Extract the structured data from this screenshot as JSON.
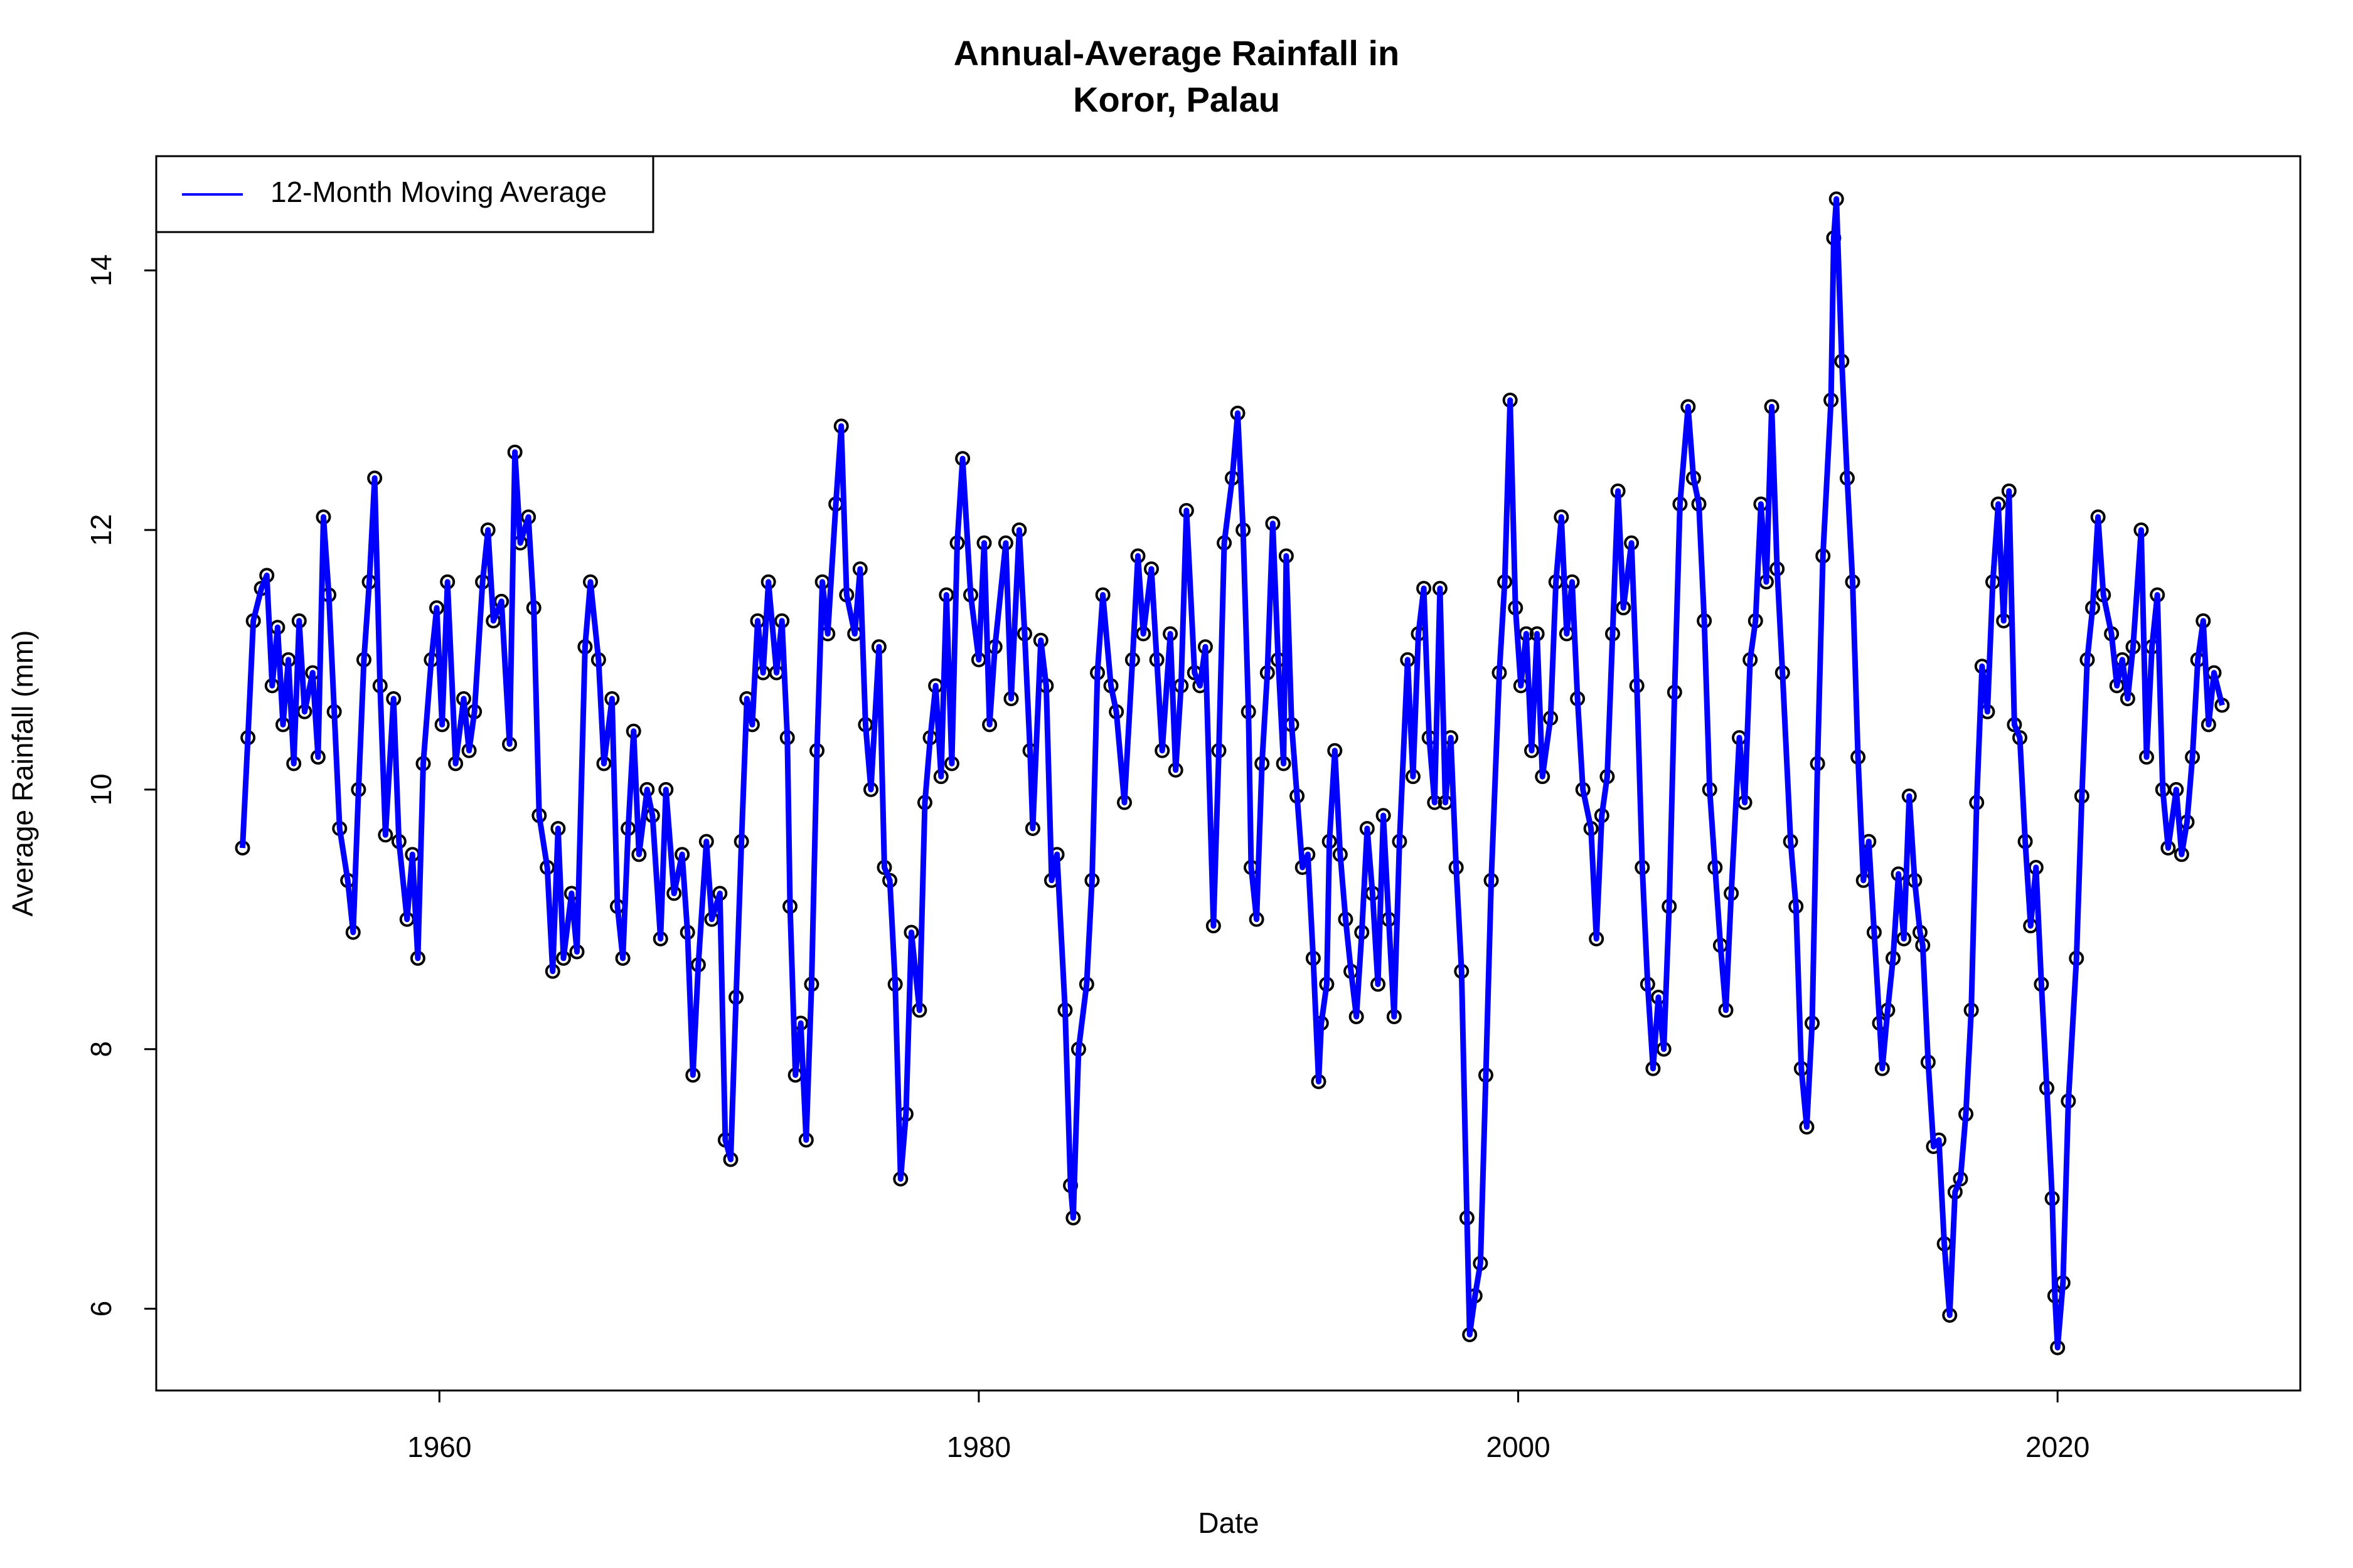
{
  "chart_data": {
    "type": "line",
    "title": "Annual-Average Rainfall in\nKoror, Palau",
    "x_label": "Date",
    "y_label": "Average Rainfall (mm)",
    "xlim": [
      1949.5,
      2029.0
    ],
    "ylim": [
      5.37,
      14.88
    ],
    "xticks": [
      1960,
      1980,
      2000,
      2020
    ],
    "yticks": [
      6,
      8,
      10,
      12,
      14
    ],
    "legend": "topleft",
    "markers": true,
    "series": [
      {
        "name": "12-Month Moving Average",
        "color": "#0000ff",
        "x": [
          1952.7,
          1952.9,
          1953.1,
          1953.4,
          1953.6,
          1953.8,
          1954.0,
          1954.2,
          1954.4,
          1954.6,
          1954.8,
          1955.0,
          1955.3,
          1955.5,
          1955.7,
          1955.9,
          1956.1,
          1956.3,
          1956.6,
          1956.8,
          1957.0,
          1957.2,
          1957.4,
          1957.6,
          1957.8,
          1958.0,
          1958.3,
          1958.5,
          1958.8,
          1959.0,
          1959.2,
          1959.4,
          1959.7,
          1959.9,
          1960.1,
          1960.3,
          1960.6,
          1960.9,
          1961.1,
          1961.3,
          1961.6,
          1961.8,
          1962.0,
          1962.3,
          1962.6,
          1962.8,
          1963.0,
          1963.3,
          1963.5,
          1963.7,
          1964.0,
          1964.2,
          1964.4,
          1964.6,
          1964.9,
          1965.1,
          1965.4,
          1965.6,
          1965.9,
          1966.1,
          1966.4,
          1966.6,
          1966.8,
          1967.0,
          1967.2,
          1967.4,
          1967.7,
          1967.9,
          1968.2,
          1968.4,
          1968.7,
          1969.0,
          1969.2,
          1969.4,
          1969.6,
          1969.9,
          1970.1,
          1970.4,
          1970.6,
          1970.8,
          1971.0,
          1971.2,
          1971.4,
          1971.6,
          1971.8,
          1972.0,
          1972.2,
          1972.5,
          1972.7,
          1972.9,
          1973.0,
          1973.2,
          1973.4,
          1973.6,
          1973.8,
          1974.0,
          1974.2,
          1974.4,
          1974.7,
          1974.9,
          1975.1,
          1975.4,
          1975.6,
          1975.8,
          1976.0,
          1976.3,
          1976.5,
          1976.7,
          1976.9,
          1977.1,
          1977.3,
          1977.5,
          1977.8,
          1978.0,
          1978.2,
          1978.4,
          1978.6,
          1978.8,
          1979.0,
          1979.2,
          1979.4,
          1979.7,
          1980.0,
          1980.2,
          1980.4,
          1980.6,
          1981.0,
          1981.2,
          1981.5,
          1981.7,
          1981.9,
          1982.0,
          1982.3,
          1982.5,
          1982.7,
          1982.9,
          1983.2,
          1983.4,
          1983.5,
          1983.7,
          1984.0,
          1984.2,
          1984.4,
          1984.6,
          1984.9,
          1985.1,
          1985.4,
          1985.7,
          1985.9,
          1986.1,
          1986.4,
          1986.6,
          1986.8,
          1987.1,
          1987.3,
          1987.5,
          1987.7,
          1988.0,
          1988.2,
          1988.4,
          1988.7,
          1988.9,
          1989.1,
          1989.4,
          1989.6,
          1989.8,
          1990.0,
          1990.1,
          1990.3,
          1990.5,
          1990.7,
          1990.9,
          1991.1,
          1991.3,
          1991.4,
          1991.6,
          1991.8,
          1992.0,
          1992.2,
          1992.4,
          1992.6,
          1992.7,
          1992.9,
          1993.0,
          1993.2,
          1993.4,
          1993.6,
          1993.8,
          1994.0,
          1994.2,
          1994.4,
          1994.6,
          1994.8,
          1995.0,
          1995.2,
          1995.4,
          1995.6,
          1995.9,
          1996.1,
          1996.3,
          1996.5,
          1996.7,
          1996.9,
          1997.1,
          1997.3,
          1997.5,
          1997.7,
          1997.9,
          1998.1,
          1998.2,
          1998.4,
          1998.6,
          1998.8,
          1999.0,
          1999.3,
          1999.5,
          1999.7,
          1999.9,
          2000.1,
          2000.3,
          2000.5,
          2000.7,
          2000.9,
          2001.2,
          2001.4,
          2001.6,
          2001.8,
          2002.0,
          2002.2,
          2002.4,
          2002.7,
          2002.9,
          2003.1,
          2003.3,
          2003.5,
          2003.7,
          2003.9,
          2004.2,
          2004.4,
          2004.6,
          2004.8,
          2005.0,
          2005.2,
          2005.4,
          2005.6,
          2005.8,
          2006.0,
          2006.3,
          2006.5,
          2006.7,
          2006.9,
          2007.1,
          2007.3,
          2007.5,
          2007.7,
          2007.9,
          2008.2,
          2008.4,
          2008.6,
          2008.8,
          2009.0,
          2009.2,
          2009.4,
          2009.6,
          2009.8,
          2010.1,
          2010.3,
          2010.5,
          2010.7,
          2010.9,
          2011.1,
          2011.3,
          2011.6,
          2011.7,
          2011.8,
          2012.0,
          2012.2,
          2012.4,
          2012.6,
          2012.8,
          2013.0,
          2013.2,
          2013.4,
          2013.5,
          2013.7,
          2013.9,
          2014.1,
          2014.3,
          2014.5,
          2014.7,
          2014.9,
          2015.0,
          2015.2,
          2015.4,
          2015.6,
          2015.8,
          2016.0,
          2016.2,
          2016.4,
          2016.6,
          2016.8,
          2017.0,
          2017.2,
          2017.4,
          2017.6,
          2017.8,
          2018.0,
          2018.2,
          2018.4,
          2018.6,
          2018.8,
          2019.0,
          2019.2,
          2019.4,
          2019.6,
          2019.8,
          2019.9,
          2020.0,
          2020.2,
          2020.4,
          2020.7,
          2020.9,
          2021.1,
          2021.3,
          2021.5,
          2021.7,
          2022.0,
          2022.2,
          2022.4,
          2022.6,
          2022.8,
          2023.1,
          2023.3,
          2023.5,
          2023.7,
          2023.9,
          2024.1,
          2024.4,
          2024.6,
          2024.8,
          2025.0,
          2025.2,
          2025.4,
          2025.6,
          2025.8,
          2026.1
        ],
        "values": [
          9.55,
          10.4,
          11.3,
          11.55,
          11.65,
          10.8,
          11.25,
          10.5,
          11.0,
          10.2,
          11.3,
          10.6,
          10.9,
          10.25,
          12.1,
          11.5,
          10.6,
          9.7,
          9.3,
          8.9,
          10.0,
          11.0,
          11.6,
          12.4,
          10.8,
          9.65,
          10.7,
          9.6,
          9.0,
          9.5,
          8.7,
          10.2,
          11.0,
          11.4,
          10.5,
          11.6,
          10.2,
          10.7,
          10.3,
          10.6,
          11.6,
          12.0,
          11.3,
          11.45,
          10.35,
          12.6,
          11.9,
          12.1,
          11.4,
          9.8,
          9.4,
          8.6,
          9.7,
          8.7,
          9.2,
          8.75,
          11.1,
          11.6,
          11.0,
          10.2,
          10.7,
          9.1,
          8.7,
          9.7,
          10.45,
          9.5,
          10.0,
          9.8,
          8.85,
          10.0,
          9.2,
          9.5,
          8.9,
          7.8,
          8.65,
          9.6,
          9.0,
          9.2,
          7.3,
          7.15,
          8.4,
          9.6,
          10.7,
          10.5,
          11.3,
          10.9,
          11.6,
          10.9,
          11.3,
          10.4,
          9.1,
          7.8,
          8.2,
          7.3,
          8.5,
          10.3,
          11.6,
          11.2,
          12.2,
          12.8,
          11.5,
          11.2,
          11.7,
          10.5,
          10.0,
          11.1,
          9.4,
          9.3,
          8.5,
          7.0,
          7.5,
          8.9,
          8.3,
          9.9,
          10.4,
          10.8,
          10.1,
          11.5,
          10.2,
          11.9,
          12.55,
          11.5,
          11.0,
          11.9,
          10.5,
          11.1,
          11.9,
          10.7,
          12.0,
          11.2,
          10.3,
          9.7,
          11.15,
          10.8,
          9.3,
          9.5,
          8.3,
          6.95,
          6.7,
          8.0,
          8.5,
          9.3,
          10.9,
          11.5,
          10.8,
          10.6,
          9.9,
          11.0,
          11.8,
          11.2,
          11.7,
          11.0,
          10.3,
          11.2,
          10.15,
          10.8,
          12.15,
          10.9,
          10.8,
          11.1,
          8.95,
          10.3,
          11.9,
          12.4,
          12.9,
          12.0,
          10.6,
          9.4,
          9.0,
          10.2,
          10.9,
          12.05,
          11.0,
          10.2,
          11.8,
          10.5,
          9.95,
          9.4,
          9.5,
          8.7,
          7.75,
          8.2,
          8.5,
          9.6,
          10.3,
          9.5,
          9.0,
          8.6,
          8.25,
          8.9,
          9.7,
          9.2,
          8.5,
          9.8,
          9.0,
          8.25,
          9.6,
          11.0,
          10.1,
          11.2,
          11.55,
          10.4,
          9.9,
          11.55,
          9.9,
          10.4,
          9.4,
          8.6,
          6.7,
          5.8,
          6.1,
          6.35,
          7.8,
          9.3,
          10.9,
          11.6,
          13.0,
          11.4,
          10.8,
          11.2,
          10.3,
          11.2,
          10.1,
          10.55,
          11.6,
          12.1,
          11.2,
          11.6,
          10.7,
          10.0,
          9.7,
          8.85,
          9.8,
          10.1,
          11.2,
          12.3,
          11.4,
          11.9,
          10.8,
          9.4,
          8.5,
          7.85,
          8.4,
          8.0,
          9.1,
          10.75,
          12.2,
          12.95,
          12.4,
          12.2,
          11.3,
          10.0,
          9.4,
          8.8,
          8.3,
          9.2,
          10.4,
          9.9,
          11.0,
          11.3,
          12.2,
          11.6,
          12.95,
          11.7,
          10.9,
          9.6,
          9.1,
          7.85,
          7.4,
          8.2,
          10.2,
          11.8,
          13.0,
          14.25,
          14.55,
          13.3,
          12.4,
          11.6,
          10.25,
          9.3,
          9.6,
          8.9,
          8.2,
          7.85,
          8.3,
          8.7,
          9.35,
          8.85,
          9.95,
          9.3,
          8.9,
          8.8,
          7.9,
          7.25,
          7.3,
          6.5,
          5.95,
          6.9,
          7.0,
          7.5,
          8.3,
          9.9,
          10.95,
          10.6,
          11.6,
          12.2,
          11.3,
          12.3,
          10.5,
          10.4,
          9.6,
          8.95,
          9.4,
          8.5,
          7.7,
          6.85,
          6.1,
          5.7,
          6.2,
          7.6,
          8.7,
          9.95,
          11.0,
          11.4,
          12.1,
          11.5,
          11.2,
          10.8,
          11.0,
          10.7,
          11.1,
          12.0,
          10.25,
          11.1,
          11.5,
          10.0,
          9.55,
          10.0,
          9.5,
          9.75,
          10.25,
          11.0,
          11.3,
          10.5,
          10.9,
          10.65
        ]
      }
    ]
  }
}
